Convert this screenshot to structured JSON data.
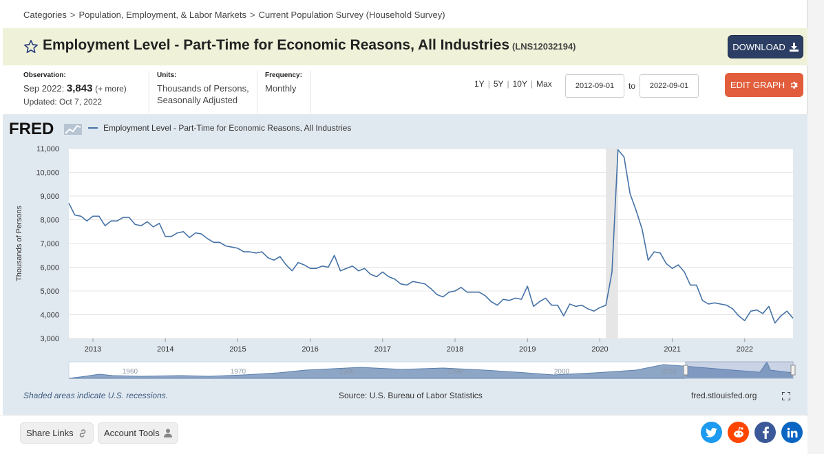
{
  "breadcrumb": {
    "items": [
      "Categories",
      "Population, Employment, & Labor Markets",
      "Current Population Survey (Household Survey)"
    ],
    "separator": ">"
  },
  "header": {
    "title": "Employment Level - Part-Time for Economic Reasons, All Industries",
    "series_id": "(LNS12032194)",
    "download_label": "DOWNLOAD"
  },
  "observation": {
    "label": "Observation:",
    "period": "Sep 2022:",
    "value": "3,843",
    "more": "(+ more)",
    "updated": "Updated: Oct 7, 2022"
  },
  "units": {
    "label": "Units:",
    "line1": "Thousands of Persons,",
    "line2": "Seasonally Adjusted"
  },
  "frequency": {
    "label": "Frequency:",
    "value": "Monthly"
  },
  "range": {
    "links": [
      "1Y",
      "5Y",
      "10Y",
      "Max"
    ],
    "start": "2012-09-01",
    "to_label": "to",
    "end": "2022-09-01",
    "edit_label": "EDIT GRAPH"
  },
  "chart": {
    "logo_text": "FRED",
    "legend": "Employment Level - Part-Time for Economic Reasons, All Industries",
    "recession_note": "Shaded areas indicate U.S. recessions.",
    "source": "Source: U.S. Bureau of Labor Statistics",
    "url": "fred.stlouisfed.org"
  },
  "chart_data": {
    "type": "line",
    "title": "Employment Level - Part-Time for Economic Reasons, All Industries",
    "ylabel": "Thousands of Persons",
    "xlabel": "",
    "ylim": [
      3000,
      11000
    ],
    "xlim": [
      2012.667,
      2022.667
    ],
    "yticks": [
      "3,000",
      "4,000",
      "5,000",
      "6,000",
      "7,000",
      "8,000",
      "9,000",
      "10,000",
      "11,000"
    ],
    "xticks": [
      "2013",
      "2014",
      "2015",
      "2016",
      "2017",
      "2018",
      "2019",
      "2020",
      "2021",
      "2022"
    ],
    "recession": [
      2020.083,
      2020.25
    ],
    "color": "#4572a7",
    "series": [
      {
        "name": "Employment Level - Part-Time for Economic Reasons, All Industries",
        "start": "2012-09",
        "values": [
          8700,
          8200,
          8150,
          7950,
          8150,
          8150,
          7750,
          7950,
          7950,
          8100,
          8100,
          7800,
          7750,
          7920,
          7700,
          7850,
          7300,
          7300,
          7450,
          7500,
          7250,
          7450,
          7400,
          7200,
          7050,
          7050,
          6900,
          6850,
          6800,
          6650,
          6650,
          6600,
          6650,
          6400,
          6300,
          6450,
          6100,
          5850,
          6200,
          6100,
          5950,
          5950,
          6050,
          6000,
          6500,
          5850,
          5950,
          6050,
          5850,
          5950,
          5700,
          5600,
          5800,
          5600,
          5500,
          5300,
          5250,
          5400,
          5350,
          5300,
          5100,
          4850,
          4750,
          4950,
          5000,
          5150,
          4950,
          4950,
          4950,
          4800,
          4550,
          4400,
          4650,
          4600,
          4700,
          4650,
          5200,
          4350,
          4550,
          4700,
          4400,
          4400,
          3950,
          4450,
          4350,
          4400,
          4250,
          4150,
          4300,
          4400,
          5800,
          10950,
          10650,
          9100,
          8400,
          7600,
          6300,
          6650,
          6600,
          6150,
          5950,
          6100,
          5800,
          5250,
          5250,
          4600,
          4450,
          4500,
          4450,
          4400,
          4250,
          3950,
          3750,
          4150,
          4200,
          4050,
          4350,
          3650,
          3950,
          4150,
          3850
        ]
      }
    ]
  },
  "navigator": {
    "labels": [
      "1960",
      "1970",
      "1980",
      "1990",
      "2000",
      "2010"
    ]
  },
  "bottom": {
    "share_label": "Share Links",
    "account_label": "Account Tools"
  },
  "social": [
    "twitter-icon",
    "reddit-icon",
    "facebook-icon",
    "linkedin-icon"
  ]
}
